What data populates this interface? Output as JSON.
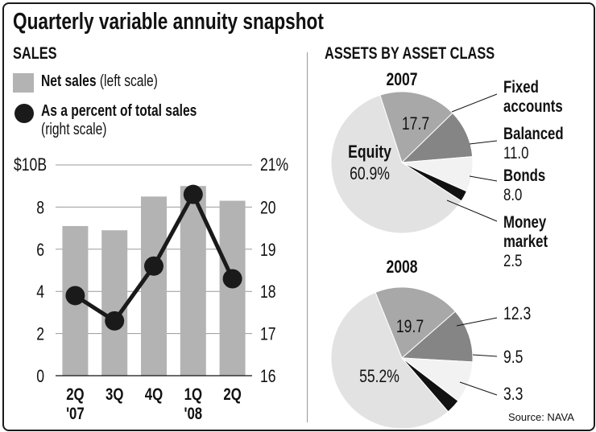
{
  "title": "Quarterly variable annuity snapshot",
  "source": "Source: NAVA",
  "sales_section": {
    "heading": "SALES",
    "legend_bar_bold": "Net sales",
    "legend_bar_light": "(left scale)",
    "legend_line_bold": "As a percent of total sales",
    "legend_line_light": "(right scale)"
  },
  "assets_section": {
    "heading": "ASSETS BY ASSET CLASS"
  },
  "colors": {
    "bar": "#b3b3b3",
    "line": "#1a1a1a",
    "equity": "#e2e2e2",
    "fixed": "#a8a8a8",
    "balanced": "#858585",
    "bonds": "#f2f2f2",
    "money": "#111111"
  },
  "chart_data": [
    {
      "type": "bar",
      "title": "SALES",
      "categories": [
        "2Q",
        "3Q",
        "4Q",
        "1Q",
        "2Q"
      ],
      "category_years": [
        "'07",
        "",
        "",
        "'08",
        ""
      ],
      "series": [
        {
          "name": "Net sales (left scale)",
          "values": [
            7.1,
            6.9,
            8.5,
            9.0,
            8.3
          ]
        }
      ],
      "left_axis": {
        "ylim": [
          0,
          10
        ],
        "ticks": [
          "0",
          "2",
          "4",
          "6",
          "8",
          "$10B"
        ]
      },
      "overlay_line": {
        "name": "As a percent of total sales (right scale)",
        "values": [
          17.9,
          17.3,
          18.6,
          20.3,
          18.3
        ],
        "ylim": [
          16,
          21
        ],
        "ticks": [
          "16",
          "17",
          "18",
          "19",
          "20",
          "21%"
        ]
      }
    },
    {
      "type": "pie",
      "title": "2007",
      "slices": [
        {
          "name": "Fixed accounts",
          "value": 17.7,
          "label": "17.7",
          "callout": [
            "Fixed",
            "accounts"
          ]
        },
        {
          "name": "Balanced",
          "value": 11.0,
          "label": "11.0",
          "callout": [
            "Balanced",
            "11.0"
          ]
        },
        {
          "name": "Bonds",
          "value": 8.0,
          "label": "8.0",
          "callout": [
            "Bonds",
            "8.0"
          ]
        },
        {
          "name": "Money market",
          "value": 2.5,
          "label": "2.5",
          "callout": [
            "Money",
            "market",
            "2.5"
          ]
        },
        {
          "name": "Equity",
          "value": 60.9,
          "label": "60.9%",
          "callout": [
            "Equity"
          ]
        }
      ]
    },
    {
      "type": "pie",
      "title": "2008",
      "slices": [
        {
          "name": "Fixed accounts",
          "value": 19.7,
          "label": "19.7"
        },
        {
          "name": "Balanced",
          "value": 12.3,
          "label": "12.3"
        },
        {
          "name": "Bonds",
          "value": 9.5,
          "label": "9.5"
        },
        {
          "name": "Money market",
          "value": 3.3,
          "label": "3.3"
        },
        {
          "name": "Equity",
          "value": 55.2,
          "label": "55.2%"
        }
      ]
    }
  ]
}
